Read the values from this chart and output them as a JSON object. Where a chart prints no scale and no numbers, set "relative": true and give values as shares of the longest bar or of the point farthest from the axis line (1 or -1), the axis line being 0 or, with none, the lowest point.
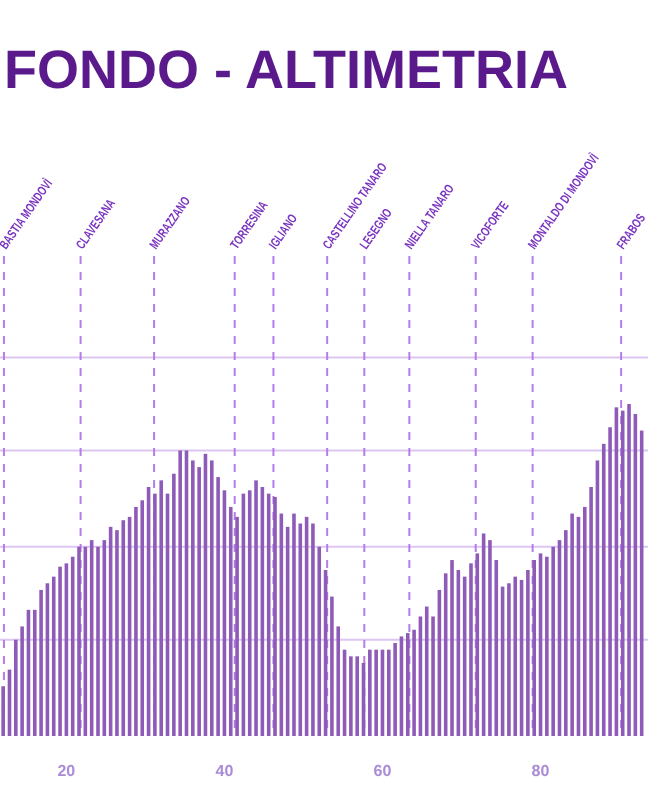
{
  "chart_data": {
    "type": "bar",
    "title": "FONDO - ALTIMETRIA",
    "relative": true,
    "color": "#8e5cb8",
    "x": [
      12,
      12.8,
      13.6,
      14.4,
      15.2,
      16,
      16.8,
      17.6,
      18.4,
      19.2,
      20,
      20.8,
      21.6,
      22.4,
      23.2,
      24,
      24.8,
      25.6,
      26.4,
      27.2,
      28,
      28.8,
      29.6,
      30.4,
      31.2,
      32,
      32.8,
      33.6,
      34.4,
      35.2,
      36,
      36.8,
      37.6,
      38.4,
      39.2,
      40,
      40.8,
      41.6,
      42.4,
      43.2,
      44,
      44.8,
      45.6,
      46.4,
      47.2,
      48,
      48.8,
      49.6,
      50.4,
      51.2,
      52,
      52.8,
      53.6,
      54.4,
      55.2,
      56,
      56.8,
      57.6,
      58.4,
      59.2,
      60,
      60.8,
      61.6,
      62.4,
      63.2,
      64,
      64.8,
      65.6,
      66.4,
      67.2,
      68,
      68.8,
      69.6,
      70.4,
      71.2,
      72,
      72.8,
      73.6,
      74.4,
      75.2,
      76,
      76.8,
      77.6,
      78.4,
      79.2,
      80,
      80.8,
      81.6,
      82.4,
      83.2,
      84,
      84.8,
      85.6,
      86.4,
      87.2,
      88,
      88.8,
      89.6,
      90.4,
      91.2,
      92,
      92.8
    ],
    "values": [
      0.15,
      0.2,
      0.29,
      0.33,
      0.38,
      0.38,
      0.44,
      0.46,
      0.48,
      0.51,
      0.52,
      0.54,
      0.57,
      0.57,
      0.59,
      0.57,
      0.59,
      0.63,
      0.62,
      0.65,
      0.66,
      0.69,
      0.71,
      0.75,
      0.73,
      0.77,
      0.73,
      0.79,
      0.86,
      0.86,
      0.83,
      0.81,
      0.85,
      0.83,
      0.78,
      0.74,
      0.69,
      0.66,
      0.73,
      0.74,
      0.77,
      0.75,
      0.73,
      0.72,
      0.67,
      0.63,
      0.67,
      0.64,
      0.66,
      0.64,
      0.57,
      0.5,
      0.42,
      0.33,
      0.26,
      0.24,
      0.24,
      0.22,
      0.26,
      0.26,
      0.26,
      0.26,
      0.28,
      0.3,
      0.31,
      0.32,
      0.36,
      0.39,
      0.36,
      0.44,
      0.49,
      0.53,
      0.5,
      0.48,
      0.52,
      0.55,
      0.61,
      0.59,
      0.53,
      0.45,
      0.46,
      0.48,
      0.47,
      0.5,
      0.53,
      0.55,
      0.54,
      0.57,
      0.59,
      0.62,
      0.67,
      0.66,
      0.69,
      0.75,
      0.83,
      0.88,
      0.93,
      0.99,
      0.98,
      1,
      0.97,
      0.92
    ],
    "xlim": [
      11.6,
      93.6
    ],
    "xticks": [
      20,
      40,
      60,
      80
    ],
    "ref_lines": [
      {
        "axis": "y",
        "value": 0.29,
        "color": "#dcc6f2",
        "line_style": "solid"
      },
      {
        "axis": "y",
        "value": 0.57,
        "color": "#dcc6f2",
        "line_style": "solid"
      },
      {
        "axis": "y",
        "value": 0.86,
        "color": "#dcc6f2",
        "line_style": "solid"
      },
      {
        "axis": "y",
        "value": 1.14,
        "color": "#dcc6f2",
        "line_style": "solid"
      },
      {
        "axis": "x",
        "value": 12.1,
        "label": "BASTIA MONDOVÌ",
        "line_style": "dashed",
        "color": "#b47ee8"
      },
      {
        "axis": "x",
        "value": 21.8,
        "label": "CLAVESANA",
        "line_style": "dashed",
        "color": "#b47ee8"
      },
      {
        "axis": "x",
        "value": 31.1,
        "label": "MURAZZANO",
        "line_style": "dashed",
        "color": "#b47ee8"
      },
      {
        "axis": "x",
        "value": 41.3,
        "label": "TORRESINA",
        "line_style": "dashed",
        "color": "#b47ee8"
      },
      {
        "axis": "x",
        "value": 46.2,
        "label": "IGLIANO",
        "line_style": "dashed",
        "color": "#b47ee8"
      },
      {
        "axis": "x",
        "value": 53,
        "label": "CASTELLINO TANARO",
        "line_style": "dashed",
        "color": "#b47ee8"
      },
      {
        "axis": "x",
        "value": 57.7,
        "label": "LESEGNO",
        "line_style": "dashed",
        "color": "#b47ee8"
      },
      {
        "axis": "x",
        "value": 63.4,
        "label": "NIELLA TANARO",
        "line_style": "dashed",
        "color": "#b47ee8"
      },
      {
        "axis": "x",
        "value": 71.8,
        "label": "VICOFORTE",
        "line_style": "dashed",
        "color": "#b47ee8"
      },
      {
        "axis": "x",
        "value": 79,
        "label": "MONTALDO DI MONDOVÌ",
        "line_style": "dashed",
        "color": "#b47ee8"
      },
      {
        "axis": "x",
        "value": 90.2,
        "label": "FRABOS",
        "line_style": "dashed",
        "color": "#b47ee8"
      }
    ]
  }
}
